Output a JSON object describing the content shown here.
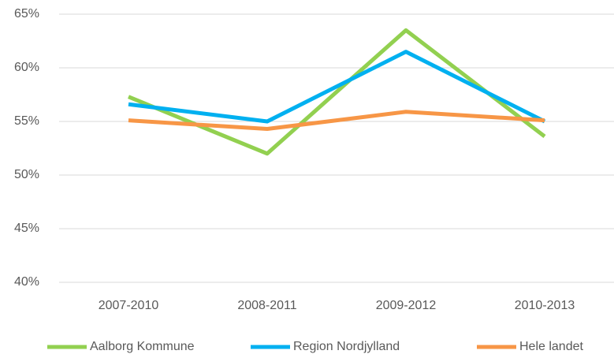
{
  "chart_data": {
    "type": "line",
    "categories": [
      "2007-2010",
      "2008-2011",
      "2009-2012",
      "2010-2013"
    ],
    "series": [
      {
        "name": "Aalborg Kommune",
        "color": "#92d050",
        "values": [
          57.3,
          52.0,
          63.5,
          53.6
        ]
      },
      {
        "name": "Region Nordjylland",
        "color": "#00b0f0",
        "values": [
          56.6,
          55.0,
          61.5,
          55.0
        ]
      },
      {
        "name": "Hele landet",
        "color": "#f79646",
        "values": [
          55.1,
          54.3,
          55.9,
          55.1
        ]
      }
    ],
    "ylim": [
      40,
      65
    ],
    "yticks": [
      {
        "value": 40,
        "label": "40%"
      },
      {
        "value": 45,
        "label": "45%"
      },
      {
        "value": 50,
        "label": "50%"
      },
      {
        "value": 55,
        "label": "55%"
      },
      {
        "value": 60,
        "label": "60%"
      },
      {
        "value": 65,
        "label": "65%"
      }
    ],
    "grid": true,
    "legend": "bottom"
  }
}
